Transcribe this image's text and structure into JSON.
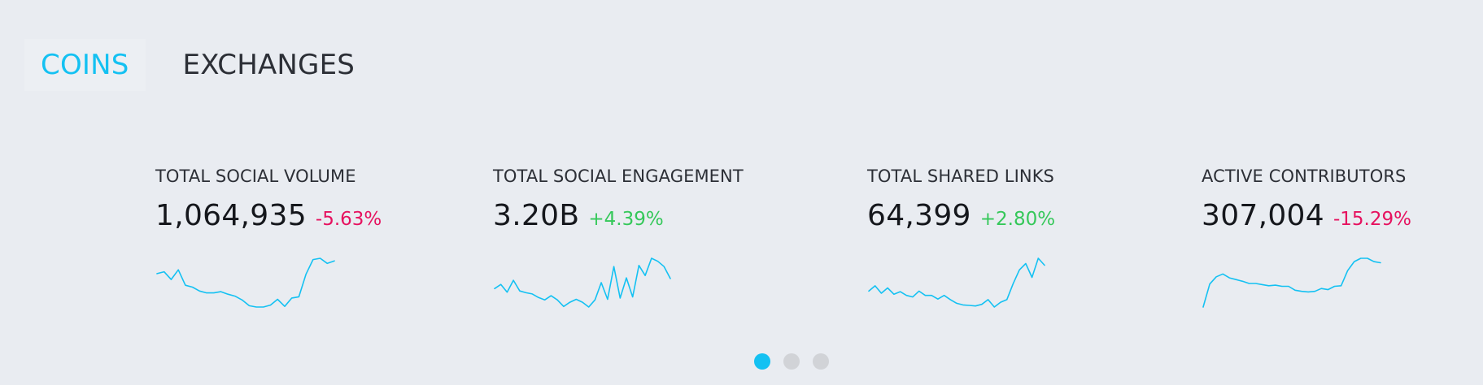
{
  "tabs": {
    "coins": "COINS",
    "exchanges": "EXCHANGES",
    "active": "coins"
  },
  "colors": {
    "accent": "#14c1f2",
    "negative": "#e6125f",
    "positive": "#35c85a",
    "background": "#e9ecf1"
  },
  "cards": [
    {
      "label": "TOTAL SOCIAL VOLUME",
      "value": "1,064,935",
      "change": "-5.63%",
      "direction": "negative",
      "sparkline": [
        48,
        51,
        39,
        54,
        30,
        27,
        21,
        18,
        18,
        20,
        16,
        13,
        7,
        -2,
        -4,
        -4,
        -1,
        8,
        -3,
        10,
        12,
        47,
        70,
        72,
        64,
        68
      ]
    },
    {
      "label": "TOTAL SOCIAL ENGAGEMENT",
      "value": "3.20B",
      "change": "+4.39%",
      "direction": "positive",
      "sparkline": [
        48,
        55,
        42,
        62,
        44,
        41,
        39,
        33,
        29,
        36,
        29,
        18,
        25,
        30,
        25,
        17,
        29,
        58,
        30,
        85,
        32,
        66,
        34,
        87,
        70,
        99,
        94,
        85,
        65
      ]
    },
    {
      "label": "TOTAL SHARED LINKS",
      "value": "64,399",
      "change": "+2.80%",
      "direction": "positive",
      "sparkline": [
        41,
        51,
        37,
        47,
        35,
        40,
        33,
        30,
        41,
        33,
        33,
        26,
        33,
        25,
        18,
        15,
        14,
        13,
        16,
        25,
        11,
        20,
        25,
        55,
        81,
        93,
        67,
        103,
        90
      ]
    },
    {
      "label": "ACTIVE CONTRIBUTORS",
      "value": "307,004",
      "change": "-15.29%",
      "direction": "negative",
      "sparkline": [
        -26,
        15,
        28,
        33,
        26,
        23,
        20,
        16,
        16,
        14,
        12,
        13,
        11,
        11,
        4,
        2,
        1,
        2,
        7,
        5,
        11,
        12,
        39,
        55,
        61,
        61,
        55,
        53
      ]
    }
  ],
  "pagination": {
    "pages": 3,
    "active": 0
  }
}
